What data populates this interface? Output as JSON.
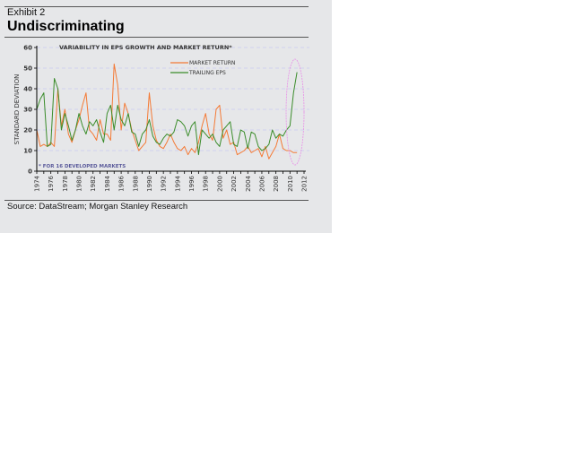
{
  "exhibit": "Exhibit 2",
  "title": "Undiscriminating",
  "source": "Source: DataStream; Morgan Stanley Research",
  "chart_data": {
    "type": "line",
    "title": "VARIABILITY IN EPS GROWTH AND MARKET RETURN*",
    "ylabel": "STANDARD DEVIATION",
    "xlabel": "",
    "footnote": "* FOR 16 DEVELOPED MARKETS",
    "ylim": [
      0,
      60
    ],
    "xlim": [
      1974,
      2012
    ],
    "yticks": [
      "0",
      "10",
      "20",
      "30",
      "40",
      "50",
      "60"
    ],
    "xticks": [
      "1974",
      "1976",
      "1978",
      "1980",
      "1982",
      "1984",
      "1986",
      "1988",
      "1990",
      "1992",
      "1994",
      "1996",
      "1998",
      "2000",
      "2002",
      "2004",
      "2006",
      "2008",
      "2010",
      "2012"
    ],
    "grid": true,
    "legend_position": "top-right",
    "colors": {
      "market": "#f47a35",
      "eps": "#3a8c2a",
      "ellipse": "#e88ee8"
    },
    "x": [
      1974,
      1974.5,
      1975,
      1975.5,
      1976,
      1976.5,
      1977,
      1977.5,
      1978,
      1978.5,
      1979,
      1979.5,
      1980,
      1980.5,
      1981,
      1981.5,
      1982,
      1982.5,
      1983,
      1983.5,
      1984,
      1984.5,
      1985,
      1985.5,
      1986,
      1986.5,
      1987,
      1987.5,
      1988,
      1988.5,
      1989,
      1989.5,
      1990,
      1990.5,
      1991,
      1991.5,
      1992,
      1992.5,
      1993,
      1993.5,
      1994,
      1994.5,
      1995,
      1995.5,
      1996,
      1996.5,
      1997,
      1997.5,
      1998,
      1998.5,
      1999,
      1999.5,
      2000,
      2000.5,
      2001,
      2001.5,
      2002,
      2002.5,
      2003,
      2003.5,
      2004,
      2004.5,
      2005,
      2005.5,
      2006,
      2006.5,
      2007,
      2007.5,
      2008,
      2008.5,
      2009,
      2009.5,
      2010,
      2010.5,
      2011
    ],
    "series": [
      {
        "name": "MARKET RETURN",
        "values": [
          20,
          12,
          13,
          12,
          14,
          12,
          40,
          22,
          30,
          18,
          14,
          20,
          25,
          32,
          38,
          20,
          18,
          15,
          25,
          18,
          18,
          15,
          52,
          42,
          20,
          33,
          28,
          20,
          15,
          10,
          12,
          14,
          38,
          22,
          15,
          12,
          11,
          14,
          18,
          14,
          11,
          10,
          12,
          8,
          11,
          9,
          14,
          22,
          28,
          18,
          15,
          30,
          32,
          16,
          20,
          13,
          14,
          8,
          9,
          10,
          12,
          9,
          10,
          11,
          7,
          12,
          6,
          9,
          12,
          18,
          11,
          10,
          10,
          9,
          9
        ]
      },
      {
        "name": "TRAILING EPS",
        "values": [
          30,
          35,
          38,
          12,
          13,
          45,
          40,
          20,
          28,
          22,
          15,
          20,
          28,
          22,
          18,
          24,
          22,
          25,
          19,
          14,
          28,
          32,
          20,
          32,
          25,
          22,
          28,
          19,
          18,
          12,
          18,
          20,
          25,
          17,
          14,
          13,
          16,
          18,
          17,
          19,
          25,
          24,
          22,
          17,
          22,
          24,
          8,
          20,
          18,
          16,
          18,
          14,
          12,
          20,
          22,
          24,
          13,
          12,
          20,
          19,
          11,
          19,
          18,
          12,
          10,
          11,
          13,
          20,
          16,
          18,
          17,
          20,
          22,
          38,
          48
        ]
      }
    ]
  }
}
